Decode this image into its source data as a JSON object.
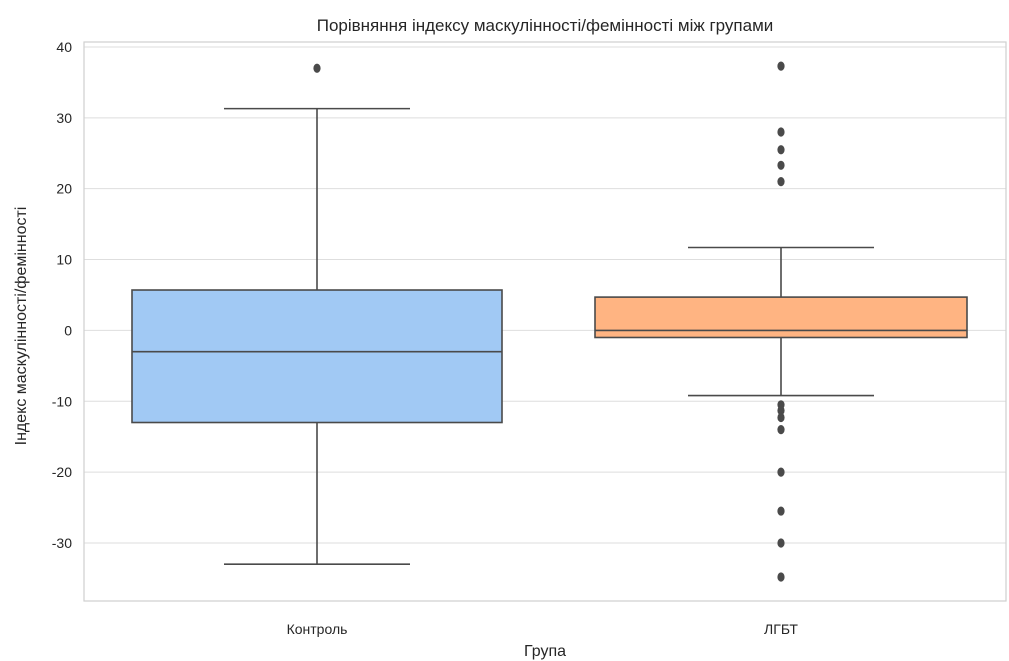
{
  "chart_data": {
    "type": "box",
    "title": "Порівняння індексу маскулінності/фемінності між групами",
    "xlabel": "Група",
    "ylabel": "Індекс маскулінності/фемінності",
    "categories": [
      "Контроль",
      "ЛГБТ"
    ],
    "ylim": [
      -38,
      41
    ],
    "yticks": [
      40,
      30,
      20,
      10,
      0,
      -10,
      -20,
      -30
    ],
    "grid": true,
    "boxes": [
      {
        "category": "Контроль",
        "color": "#a1c9f4",
        "whisker_low": -33,
        "q1": -13,
        "median": -3,
        "q3": 5.7,
        "whisker_high": 31.3,
        "outliers": [
          37
        ]
      },
      {
        "category": "ЛГБТ",
        "color": "#ffb482",
        "whisker_low": -9.2,
        "q1": -1,
        "median": 0,
        "q3": 4.7,
        "whisker_high": 11.7,
        "outliers": [
          37.3,
          28,
          25.5,
          23.3,
          21,
          -10.5,
          -11.3,
          -12.3,
          -14,
          -20,
          -25.5,
          -30,
          -34.8
        ]
      }
    ]
  }
}
